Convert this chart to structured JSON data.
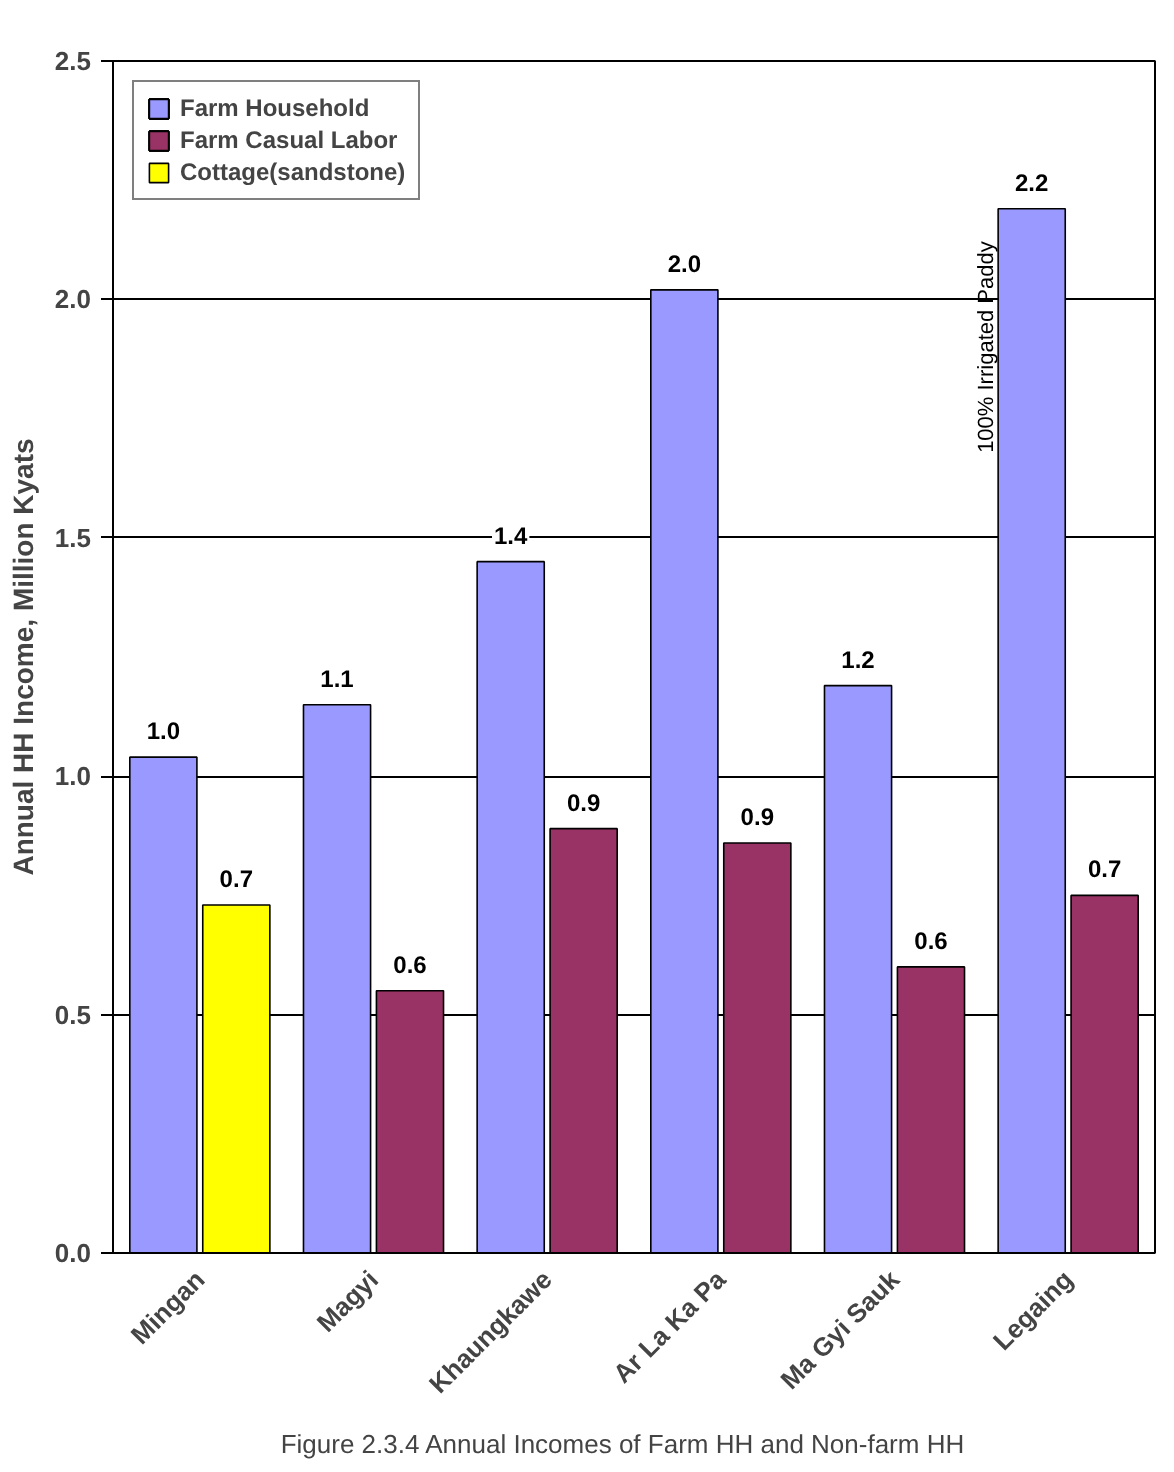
{
  "chart_data": {
    "type": "bar",
    "ylabel": "Annual HH Income, Million Kyats",
    "categories": [
      "Mingan",
      "Magyi",
      "Khaungkawe",
      "Ar La Ka Pa",
      "Ma Gyi Sauk",
      "Legaing"
    ],
    "series": [
      {
        "name": "Farm Household",
        "color": "#9999ff",
        "values": [
          1.04,
          1.15,
          1.45,
          2.02,
          1.19,
          2.19
        ],
        "value_labels": [
          "1.0",
          "1.1",
          "1.4",
          "2.0",
          "1.2",
          "2.2"
        ]
      },
      {
        "name": "Farm Casual Labor",
        "color": "#993366",
        "values": [
          null,
          0.55,
          0.89,
          0.86,
          0.6,
          0.75
        ],
        "value_labels": [
          null,
          "0.6",
          "0.9",
          "0.9",
          "0.6",
          "0.7"
        ]
      },
      {
        "name": "Cottage(sandstone)",
        "color": "#ffff00",
        "values": [
          0.73,
          null,
          null,
          null,
          null,
          null
        ],
        "value_labels": [
          "0.7",
          null,
          null,
          null,
          null,
          null
        ]
      }
    ],
    "ylim": [
      0,
      2.5
    ],
    "yticks": [
      {
        "value": 0,
        "label": "0.0"
      },
      {
        "value": 0.5,
        "label": "0.5"
      },
      {
        "value": 1,
        "label": "1.0"
      },
      {
        "value": 1.5,
        "label": "1.5"
      },
      {
        "value": 2,
        "label": "2.0"
      },
      {
        "value": 2.5,
        "label": "2.5"
      }
    ],
    "grid": "y",
    "legend": "top left",
    "annotations": [
      "100% Irrigated Paddy",
      "Figure 2.3.4    Annual Incomes of Farm HH and Non-farm HH"
    ]
  }
}
